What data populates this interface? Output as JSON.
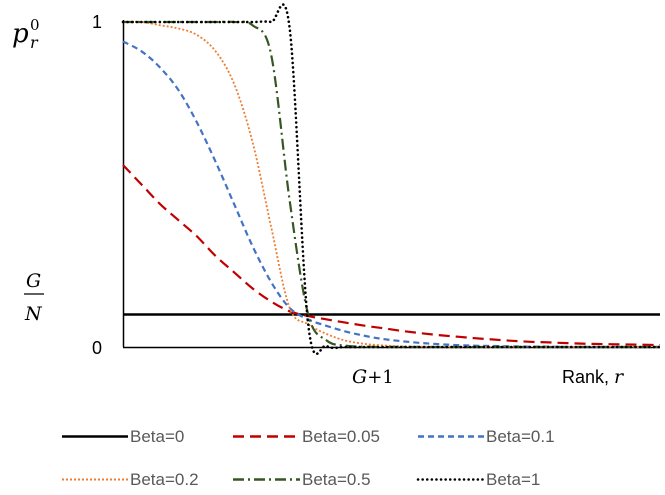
{
  "chart_data": {
    "type": "line",
    "ylabel": {
      "base": "p",
      "sup": "0",
      "sub": "r"
    },
    "y_ticks": {
      "top": "1",
      "bottom": "0"
    },
    "g_over_n": {
      "numerator": "G",
      "denominator": "N"
    },
    "x_marker": {
      "var": "G",
      "rest": "+1"
    },
    "xlabel": {
      "text": "Rank, ",
      "var": "r"
    },
    "xlim": [
      1,
      30
    ],
    "ylim": [
      0,
      1
    ],
    "G": 10,
    "GN_value": 0.1,
    "legend_position": "bottom",
    "x": [
      1,
      2,
      3,
      4,
      5,
      6,
      7,
      8,
      9,
      10,
      11,
      12,
      13,
      14,
      15,
      16,
      17,
      18,
      19,
      20,
      21,
      22,
      23,
      24,
      25,
      26,
      27,
      28,
      29,
      30
    ],
    "series": [
      {
        "name": "Beta=0",
        "color": "#000000",
        "dash": "solid",
        "values": [
          0.1,
          0.1,
          0.1,
          0.1,
          0.1,
          0.1,
          0.1,
          0.1,
          0.1,
          0.1,
          0.1,
          0.1,
          0.1,
          0.1,
          0.1,
          0.1,
          0.1,
          0.1,
          0.1,
          0.1,
          0.1,
          0.1,
          0.1,
          0.1,
          0.1,
          0.1,
          0.1,
          0.1,
          0.1,
          0.1
        ]
      },
      {
        "name": "Beta=0.05",
        "color": "#c00000",
        "dash": "long-dash",
        "values": [
          0.56,
          0.5,
          0.44,
          0.39,
          0.34,
          0.28,
          0.23,
          0.18,
          0.14,
          0.11,
          0.095,
          0.085,
          0.075,
          0.066,
          0.058,
          0.05,
          0.043,
          0.037,
          0.032,
          0.027,
          0.023,
          0.019,
          0.016,
          0.014,
          0.012,
          0.01,
          0.009,
          0.008,
          0.007,
          0.006
        ]
      },
      {
        "name": "Beta=0.1",
        "color": "#4472c4",
        "dash": "dash",
        "values": [
          0.94,
          0.91,
          0.86,
          0.79,
          0.69,
          0.57,
          0.44,
          0.31,
          0.2,
          0.12,
          0.085,
          0.065,
          0.048,
          0.035,
          0.025,
          0.018,
          0.013,
          0.009,
          0.006,
          0.004,
          0.003,
          0.002,
          0.001,
          0.001,
          0.0,
          0.0,
          0.0,
          0.0,
          0.0,
          0.0
        ]
      },
      {
        "name": "Beta=0.2",
        "color": "#ed7d31",
        "dash": "dot",
        "values": [
          1.0,
          1.0,
          0.99,
          0.98,
          0.96,
          0.91,
          0.81,
          0.63,
          0.37,
          0.12,
          0.07,
          0.04,
          0.02,
          0.01,
          0.005,
          0.002,
          0.001,
          0.0,
          0.0,
          0.0,
          0.0,
          0.0,
          0.0,
          0.0,
          0.0,
          0.0,
          0.0,
          0.0,
          0.0,
          0.0
        ]
      },
      {
        "name": "Beta=0.5",
        "color": "#375623",
        "dash": "dash-dot",
        "values": [
          1.0,
          1.0,
          1.0,
          1.0,
          1.0,
          1.0,
          1.0,
          0.99,
          0.9,
          0.45,
          0.1,
          0.02,
          0.004,
          0.001,
          0.0,
          0.0,
          0.0,
          0.0,
          0.0,
          0.0,
          0.0,
          0.0,
          0.0,
          0.0,
          0.0,
          0.0,
          0.0,
          0.0,
          0.0,
          0.0
        ]
      },
      {
        "name": "Beta=1",
        "color": "#000000",
        "dash": "round-dot",
        "values": [
          1.0,
          1.0,
          1.0,
          1.0,
          1.0,
          1.0,
          1.0,
          1.0,
          1.0,
          0.98,
          0.07,
          0.003,
          0.0,
          0.0,
          0.0,
          0.0,
          0.0,
          0.0,
          0.0,
          0.0,
          0.0,
          0.0,
          0.0,
          0.0,
          0.0,
          0.0,
          0.0,
          0.0,
          0.0,
          0.0
        ]
      }
    ]
  }
}
